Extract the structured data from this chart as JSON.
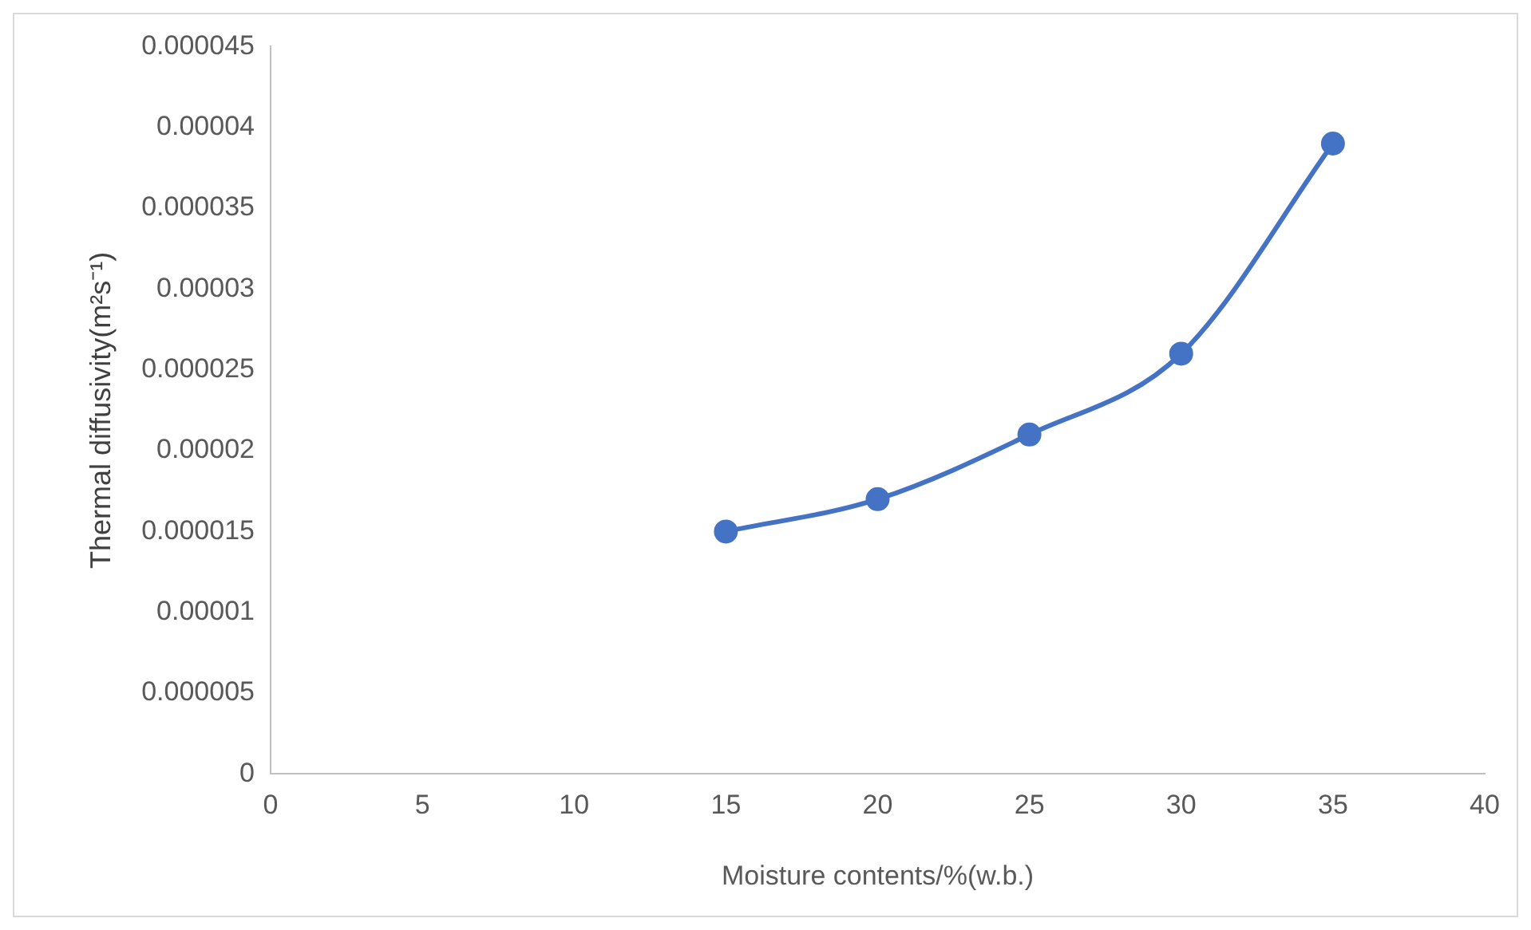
{
  "chart_data": {
    "type": "line",
    "xlabel": "Moisture contents/%(w.b.)",
    "ylabel": "Thermal diffusivity(m²s⁻¹)",
    "x": [
      15,
      20,
      25,
      30,
      35
    ],
    "series": [
      {
        "color": "#4472c4",
        "values": [
          1.5e-05,
          1.7e-05,
          2.1e-05,
          2.6e-05,
          3.9e-05
        ]
      }
    ],
    "xlim": [
      0,
      40
    ],
    "xticks": [
      0,
      5,
      10,
      15,
      20,
      25,
      30,
      35,
      40
    ],
    "ylim": [
      0,
      4.5e-05
    ],
    "yticks": [
      {
        "value": 0,
        "label": "0"
      },
      {
        "value": 5e-06,
        "label": "0.000005"
      },
      {
        "value": 1e-05,
        "label": "0.00001"
      },
      {
        "value": 1.5e-05,
        "label": "0.000015"
      },
      {
        "value": 2e-05,
        "label": "0.00002"
      },
      {
        "value": 2.5e-05,
        "label": "0.000025"
      },
      {
        "value": 3e-05,
        "label": "0.00003"
      },
      {
        "value": 3.5e-05,
        "label": "0.000035"
      },
      {
        "value": 4e-05,
        "label": "0.00004"
      },
      {
        "value": 4.5e-05,
        "label": "0.000045"
      }
    ],
    "grid": false,
    "legend": false,
    "marker": "circle",
    "line_style": "solid"
  }
}
